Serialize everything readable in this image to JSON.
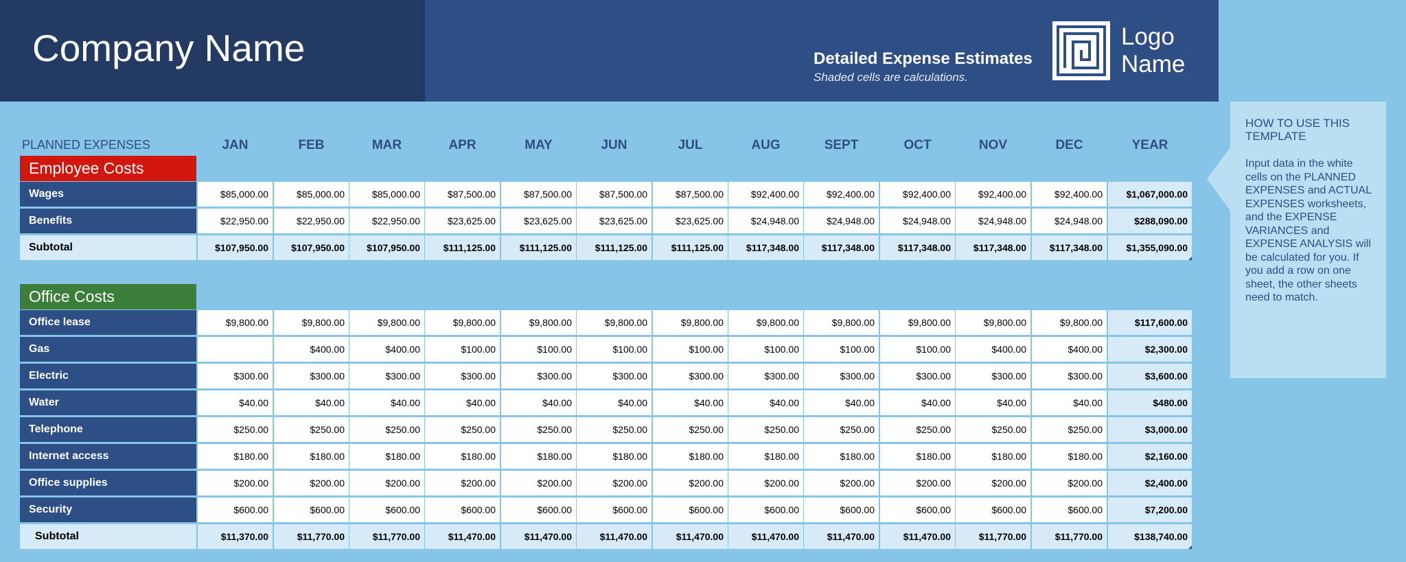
{
  "header": {
    "company": "Company Name",
    "title": "Detailed Expense Estimates",
    "subtitle": "Shaded cells are calculations.",
    "logo_line1": "Logo",
    "logo_line2": "Name",
    "colors": {
      "dark": "#233A62",
      "mid": "#2E4E86",
      "background": "#87C5E8"
    }
  },
  "help": {
    "title": "HOW TO USE THIS TEMPLATE",
    "body": "Input data in the white cells on the PLANNED EXPENSES and ACTUAL EXPENSES worksheets, and the EXPENSE VARIANCES and EXPENSE ANALYSIS will be calculated for you.  If you add a row on one sheet, the other sheets need to match."
  },
  "table": {
    "planned_label": "PLANNED EXPENSES",
    "columns": [
      "JAN",
      "FEB",
      "MAR",
      "APR",
      "MAY",
      "JUN",
      "JUL",
      "AUG",
      "SEPT",
      "OCT",
      "NOV",
      "DEC",
      "YEAR"
    ],
    "sections": [
      {
        "name": "Employee Costs",
        "color": "#D2180E",
        "rows": [
          {
            "label": "Wages",
            "values": [
              "$85,000.00",
              "$85,000.00",
              "$85,000.00",
              "$87,500.00",
              "$87,500.00",
              "$87,500.00",
              "$87,500.00",
              "$92,400.00",
              "$92,400.00",
              "$92,400.00",
              "$92,400.00",
              "$92,400.00",
              "$1,067,000.00"
            ]
          },
          {
            "label": "Benefits",
            "values": [
              "$22,950.00",
              "$22,950.00",
              "$22,950.00",
              "$23,625.00",
              "$23,625.00",
              "$23,625.00",
              "$23,625.00",
              "$24,948.00",
              "$24,948.00",
              "$24,948.00",
              "$24,948.00",
              "$24,948.00",
              "$288,090.00"
            ]
          },
          {
            "label": "Subtotal",
            "subtotal": true,
            "values": [
              "$107,950.00",
              "$107,950.00",
              "$107,950.00",
              "$111,125.00",
              "$111,125.00",
              "$111,125.00",
              "$111,125.00",
              "$117,348.00",
              "$117,348.00",
              "$117,348.00",
              "$117,348.00",
              "$117,348.00",
              "$1,355,090.00"
            ]
          }
        ]
      },
      {
        "name": "Office Costs",
        "color": "#3B7F3A",
        "rows": [
          {
            "label": "Office lease",
            "values": [
              "$9,800.00",
              "$9,800.00",
              "$9,800.00",
              "$9,800.00",
              "$9,800.00",
              "$9,800.00",
              "$9,800.00",
              "$9,800.00",
              "$9,800.00",
              "$9,800.00",
              "$9,800.00",
              "$9,800.00",
              "$117,600.00"
            ]
          },
          {
            "label": "Gas",
            "values": [
              "",
              "$400.00",
              "$400.00",
              "$100.00",
              "$100.00",
              "$100.00",
              "$100.00",
              "$100.00",
              "$100.00",
              "$100.00",
              "$400.00",
              "$400.00",
              "$2,300.00"
            ]
          },
          {
            "label": "Electric",
            "values": [
              "$300.00",
              "$300.00",
              "$300.00",
              "$300.00",
              "$300.00",
              "$300.00",
              "$300.00",
              "$300.00",
              "$300.00",
              "$300.00",
              "$300.00",
              "$300.00",
              "$3,600.00"
            ]
          },
          {
            "label": "Water",
            "values": [
              "$40.00",
              "$40.00",
              "$40.00",
              "$40.00",
              "$40.00",
              "$40.00",
              "$40.00",
              "$40.00",
              "$40.00",
              "$40.00",
              "$40.00",
              "$40.00",
              "$480.00"
            ]
          },
          {
            "label": "Telephone",
            "values": [
              "$250.00",
              "$250.00",
              "$250.00",
              "$250.00",
              "$250.00",
              "$250.00",
              "$250.00",
              "$250.00",
              "$250.00",
              "$250.00",
              "$250.00",
              "$250.00",
              "$3,000.00"
            ]
          },
          {
            "label": "Internet access",
            "values": [
              "$180.00",
              "$180.00",
              "$180.00",
              "$180.00",
              "$180.00",
              "$180.00",
              "$180.00",
              "$180.00",
              "$180.00",
              "$180.00",
              "$180.00",
              "$180.00",
              "$2,160.00"
            ]
          },
          {
            "label": "Office supplies",
            "values": [
              "$200.00",
              "$200.00",
              "$200.00",
              "$200.00",
              "$200.00",
              "$200.00",
              "$200.00",
              "$200.00",
              "$200.00",
              "$200.00",
              "$200.00",
              "$200.00",
              "$2,400.00"
            ]
          },
          {
            "label": "Security",
            "values": [
              "$600.00",
              "$600.00",
              "$600.00",
              "$600.00",
              "$600.00",
              "$600.00",
              "$600.00",
              "$600.00",
              "$600.00",
              "$600.00",
              "$600.00",
              "$600.00",
              "$7,200.00"
            ]
          },
          {
            "label": "Subtotal",
            "subtotal": true,
            "values": [
              "$11,370.00",
              "$11,770.00",
              "$11,770.00",
              "$11,470.00",
              "$11,470.00",
              "$11,470.00",
              "$11,470.00",
              "$11,470.00",
              "$11,470.00",
              "$11,470.00",
              "$11,770.00",
              "$11,770.00",
              "$138,740.00"
            ]
          }
        ]
      }
    ]
  }
}
